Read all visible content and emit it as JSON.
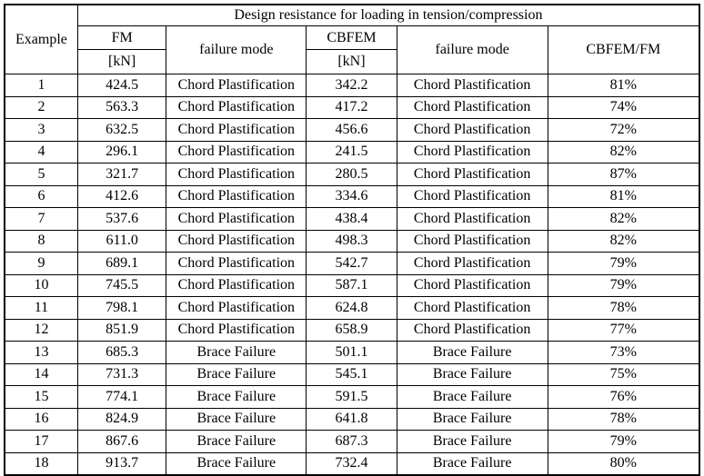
{
  "chart_data": {
    "type": "table",
    "title": "Design resistance for loading in tension/compression",
    "columns": [
      "Example",
      "FM [kN]",
      "failure mode",
      "CBFEM [kN]",
      "failure mode",
      "CBFEM/FM"
    ],
    "rows": [
      {
        "example": "1",
        "fm": "424.5",
        "fm_mode": "Chord Plastification",
        "cbfem": "342.2",
        "cbfem_mode": "Chord Plastification",
        "ratio": "81%"
      },
      {
        "example": "2",
        "fm": "563.3",
        "fm_mode": "Chord Plastification",
        "cbfem": "417.2",
        "cbfem_mode": "Chord Plastification",
        "ratio": "74%"
      },
      {
        "example": "3",
        "fm": "632.5",
        "fm_mode": "Chord Plastification",
        "cbfem": "456.6",
        "cbfem_mode": "Chord Plastification",
        "ratio": "72%"
      },
      {
        "example": "4",
        "fm": "296.1",
        "fm_mode": "Chord Plastification",
        "cbfem": "241.5",
        "cbfem_mode": "Chord Plastification",
        "ratio": "82%"
      },
      {
        "example": "5",
        "fm": "321.7",
        "fm_mode": "Chord Plastification",
        "cbfem": "280.5",
        "cbfem_mode": "Chord Plastification",
        "ratio": "87%"
      },
      {
        "example": "6",
        "fm": "412.6",
        "fm_mode": "Chord Plastification",
        "cbfem": "334.6",
        "cbfem_mode": "Chord Plastification",
        "ratio": "81%"
      },
      {
        "example": "7",
        "fm": "537.6",
        "fm_mode": "Chord Plastification",
        "cbfem": "438.4",
        "cbfem_mode": "Chord Plastification",
        "ratio": "82%"
      },
      {
        "example": "8",
        "fm": "611.0",
        "fm_mode": "Chord Plastification",
        "cbfem": "498.3",
        "cbfem_mode": "Chord Plastification",
        "ratio": "82%"
      },
      {
        "example": "9",
        "fm": "689.1",
        "fm_mode": "Chord Plastification",
        "cbfem": "542.7",
        "cbfem_mode": "Chord Plastification",
        "ratio": "79%"
      },
      {
        "example": "10",
        "fm": "745.5",
        "fm_mode": "Chord Plastification",
        "cbfem": "587.1",
        "cbfem_mode": "Chord Plastification",
        "ratio": "79%"
      },
      {
        "example": "11",
        "fm": "798.1",
        "fm_mode": "Chord Plastification",
        "cbfem": "624.8",
        "cbfem_mode": "Chord Plastification",
        "ratio": "78%"
      },
      {
        "example": "12",
        "fm": "851.9",
        "fm_mode": "Chord Plastification",
        "cbfem": "658.9",
        "cbfem_mode": "Chord Plastification",
        "ratio": "77%"
      },
      {
        "example": "13",
        "fm": "685.3",
        "fm_mode": "Brace Failure",
        "cbfem": "501.1",
        "cbfem_mode": "Brace Failure",
        "ratio": "73%"
      },
      {
        "example": "14",
        "fm": "731.3",
        "fm_mode": "Brace Failure",
        "cbfem": "545.1",
        "cbfem_mode": "Brace Failure",
        "ratio": "75%"
      },
      {
        "example": "15",
        "fm": "774.1",
        "fm_mode": "Brace Failure",
        "cbfem": "591.5",
        "cbfem_mode": "Brace Failure",
        "ratio": "76%"
      },
      {
        "example": "16",
        "fm": "824.9",
        "fm_mode": "Brace Failure",
        "cbfem": "641.8",
        "cbfem_mode": "Brace Failure",
        "ratio": "78%"
      },
      {
        "example": "17",
        "fm": "867.6",
        "fm_mode": "Brace Failure",
        "cbfem": "687.3",
        "cbfem_mode": "Brace Failure",
        "ratio": "79%"
      },
      {
        "example": "18",
        "fm": "913.7",
        "fm_mode": "Brace Failure",
        "cbfem": "732.4",
        "cbfem_mode": "Brace Failure",
        "ratio": "80%"
      }
    ]
  },
  "header": {
    "example": "Example",
    "span_title": "Design resistance for loading in tension/compression",
    "fm": "FM",
    "fm_unit": "[kN]",
    "failure_mode_fm": "failure mode",
    "cbfem": "CBFEM",
    "cbfem_unit": "[kN]",
    "failure_mode_cbfem": "failure mode",
    "ratio": "CBFEM/FM"
  },
  "colors": {
    "border": "#000000",
    "text": "#000000",
    "background": "#ffffff"
  }
}
